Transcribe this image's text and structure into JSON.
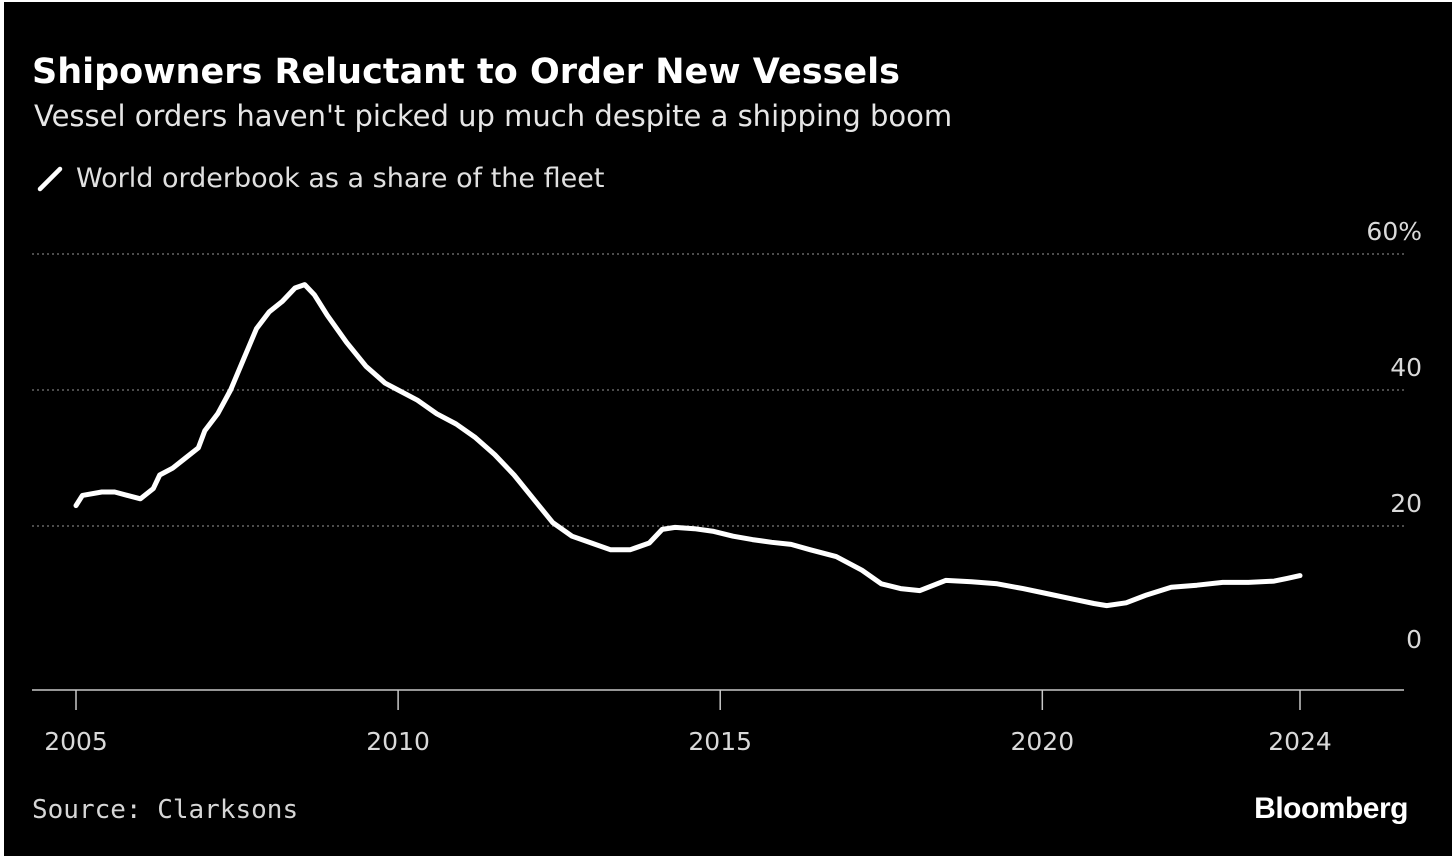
{
  "header": {
    "title": "Shipowners Reluctant to Order New Vessels",
    "subtitle": "Vessel orders haven't picked up much despite a shipping boom"
  },
  "legend": {
    "label": "World orderbook as a share of the fleet",
    "color": "#ffffff"
  },
  "footer": {
    "source": "Source: Clarksons",
    "brand": "Bloomberg"
  },
  "colors": {
    "background": "#000000",
    "line": "#ffffff",
    "grid": "#7a7a7a",
    "tick_text": "#d9d9d9"
  },
  "chart_data": {
    "type": "line",
    "title": "Shipowners Reluctant to Order New Vessels",
    "subtitle": "Vessel orders haven't picked up much despite a shipping boom",
    "xlabel": "",
    "ylabel": "",
    "xlim": [
      2004.6,
      2026.0
    ],
    "ylim": [
      -4,
      60
    ],
    "x_ticks": [
      2005,
      2010,
      2015,
      2020,
      2024
    ],
    "x_tick_labels": [
      "2005",
      "2010",
      "2015",
      "2020",
      "2024"
    ],
    "y_ticks": [
      0,
      20,
      40,
      60
    ],
    "y_tick_labels": [
      "0",
      "20",
      "40",
      "60%"
    ],
    "y_axis_position": "right",
    "grid": "horizontal-dotted",
    "legend_position": "top-left",
    "series": [
      {
        "name": "World orderbook as a share of the fleet",
        "x": [
          2005.0,
          2005.1,
          2005.4,
          2005.6,
          2005.8,
          2006.0,
          2006.2,
          2006.3,
          2006.5,
          2006.7,
          2006.9,
          2007.0,
          2007.2,
          2007.4,
          2007.6,
          2007.8,
          2008.0,
          2008.2,
          2008.4,
          2008.55,
          2008.7,
          2008.9,
          2009.2,
          2009.5,
          2009.8,
          2010.0,
          2010.3,
          2010.6,
          2010.9,
          2011.2,
          2011.5,
          2011.8,
          2012.1,
          2012.4,
          2012.7,
          2013.0,
          2013.3,
          2013.6,
          2013.9,
          2014.1,
          2014.3,
          2014.6,
          2014.9,
          2015.2,
          2015.5,
          2015.8,
          2016.1,
          2016.4,
          2016.8,
          2017.2,
          2017.5,
          2017.8,
          2018.1,
          2018.5,
          2018.9,
          2019.3,
          2019.7,
          2020.1,
          2020.5,
          2020.8,
          2021.0,
          2021.3,
          2021.6,
          2022.0,
          2022.4,
          2022.8,
          2023.2,
          2023.6,
          2023.8,
          2024.0
        ],
        "y": [
          23,
          24.5,
          25,
          25,
          24.5,
          24,
          25.5,
          27.5,
          28.5,
          30,
          31.5,
          34,
          36.5,
          40,
          44.5,
          49,
          51.5,
          53,
          55,
          55.5,
          54,
          51,
          47,
          43.5,
          41,
          40,
          38.5,
          36.5,
          35,
          33,
          30.5,
          27.5,
          24,
          20.5,
          18.5,
          17.5,
          16.5,
          16.5,
          17.5,
          19.5,
          19.8,
          19.6,
          19.2,
          18.5,
          18,
          17.6,
          17.3,
          16.5,
          15.5,
          13.5,
          11.5,
          10.8,
          10.5,
          12,
          11.8,
          11.5,
          10.8,
          10,
          9.2,
          8.6,
          8.3,
          8.7,
          9.8,
          11,
          11.3,
          11.7,
          11.7,
          11.9,
          12.3,
          12.7
        ]
      }
    ]
  }
}
